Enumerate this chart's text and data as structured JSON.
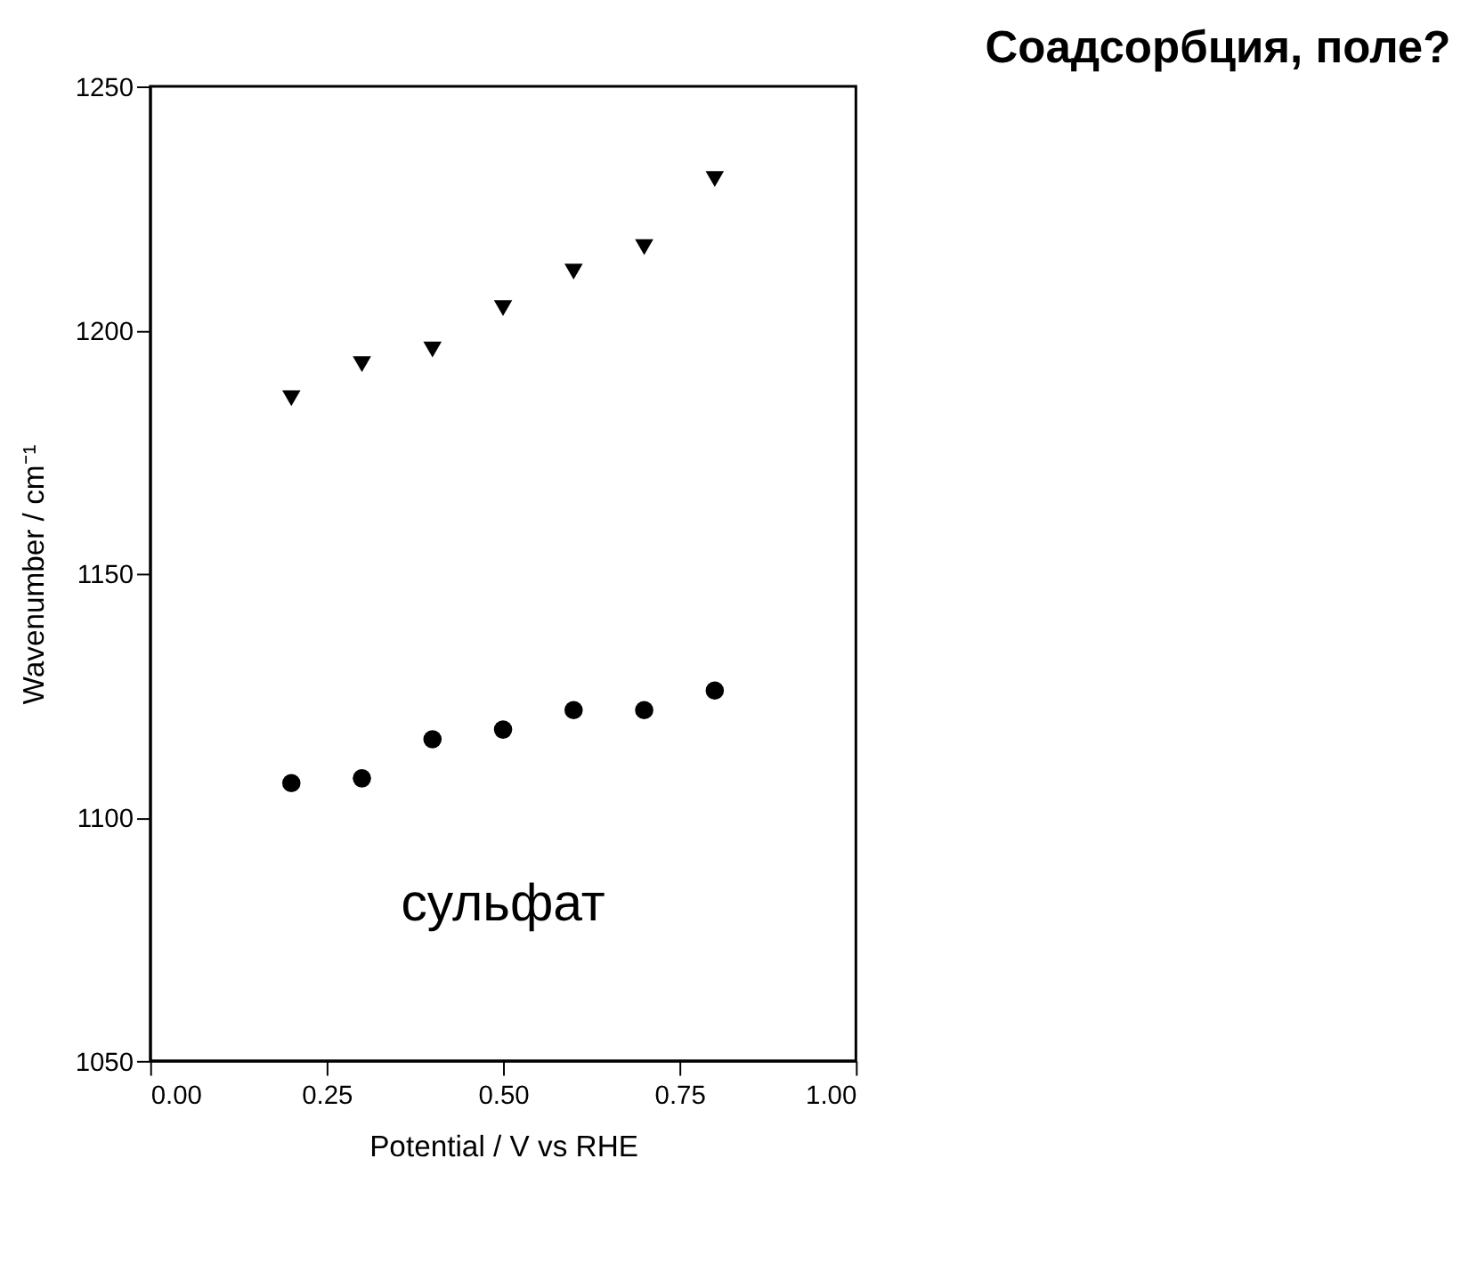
{
  "chart_data": {
    "type": "scatter",
    "title": "Соадсорбция, поле?",
    "xlabel": "Potential / V vs RHE",
    "ylabel": "Wavenumber / cm⁻¹",
    "annotations": [
      "сульфат"
    ],
    "x": [
      0.2,
      0.3,
      0.4,
      0.5,
      0.6,
      0.7,
      0.8
    ],
    "series": [
      {
        "color": "#000000",
        "marker": "triangle",
        "values": [
          1186,
          1193,
          1196,
          1204.5,
          1212,
          1217,
          1231
        ]
      },
      {
        "color": "#000000",
        "marker": "circle",
        "values": [
          1107,
          1108,
          1116,
          1118,
          1122,
          1122,
          1126
        ]
      }
    ],
    "xlim": [
      0,
      1
    ],
    "xticks": [
      {
        "value": 0,
        "label": "0.00"
      },
      {
        "value": 0.25,
        "label": "0.25"
      },
      {
        "value": 0.5,
        "label": "0.50"
      },
      {
        "value": 0.75,
        "label": "0.75"
      },
      {
        "value": 1,
        "label": "1.00"
      }
    ],
    "ylim": [
      1050,
      1250
    ],
    "yticks": [
      1050,
      1100,
      1150,
      1200,
      1250
    ],
    "grid": false
  }
}
